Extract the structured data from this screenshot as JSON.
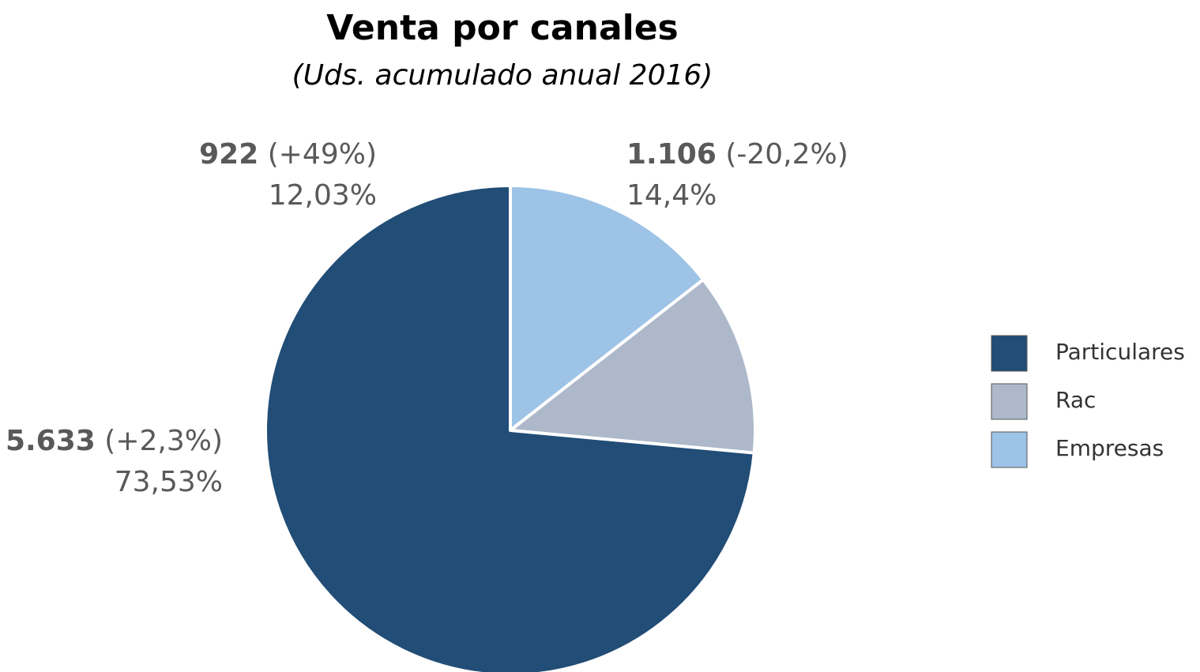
{
  "chart_data": {
    "type": "pie",
    "title": "Venta por canales",
    "subtitle": "(Uds. acumulado anual 2016)",
    "categories": [
      "Particulares",
      "Rac",
      "Empresas"
    ],
    "values": [
      5633,
      922,
      1106
    ],
    "value_labels": [
      "5.633",
      "922",
      "1.106"
    ],
    "change_labels": [
      "(+2,3%)",
      "(+49%)",
      "(-20,2%)"
    ],
    "shares": [
      73.53,
      12.03,
      14.4
    ],
    "share_labels": [
      "73,53%",
      "12,03%",
      "14,4%"
    ],
    "colors": [
      "#214d76",
      "#adb9ca",
      "#9dc3e6"
    ],
    "legend": "right"
  }
}
